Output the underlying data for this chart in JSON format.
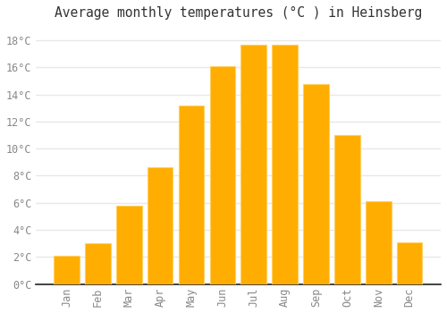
{
  "title": "Average monthly temperatures (°C ) in Heinsberg",
  "months": [
    "Jan",
    "Feb",
    "Mar",
    "Apr",
    "May",
    "Jun",
    "Jul",
    "Aug",
    "Sep",
    "Oct",
    "Nov",
    "Dec"
  ],
  "temperatures": [
    2.1,
    3.0,
    5.8,
    8.6,
    13.2,
    16.1,
    17.7,
    17.7,
    14.8,
    11.0,
    6.1,
    3.1
  ],
  "bar_color": "#FFAD00",
  "bar_edge_color": "#FFD060",
  "background_color": "#FFFFFF",
  "grid_color": "#E8E8E8",
  "text_color": "#888888",
  "axis_color": "#222222",
  "ylim": [
    0,
    19
  ],
  "yticks": [
    0,
    2,
    4,
    6,
    8,
    10,
    12,
    14,
    16,
    18
  ],
  "title_fontsize": 10.5,
  "tick_fontsize": 8.5,
  "bar_width": 0.82
}
